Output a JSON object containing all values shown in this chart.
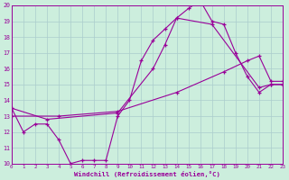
{
  "xlabel": "Windchill (Refroidissement éolien,°C)",
  "xlim": [
    0,
    23
  ],
  "ylim": [
    10,
    20
  ],
  "bg_color": "#cceedd",
  "line_color": "#990099",
  "grid_color": "#aacccc",
  "line1_x": [
    0,
    1,
    2,
    3,
    4,
    5,
    6,
    7,
    8,
    9,
    10,
    11,
    12,
    13,
    14,
    15,
    16,
    17,
    18,
    19,
    20,
    21,
    22,
    23
  ],
  "line1_y": [
    13.5,
    12.0,
    12.5,
    12.5,
    11.5,
    10.0,
    10.2,
    10.2,
    10.2,
    13.0,
    14.0,
    16.5,
    17.8,
    18.5,
    19.2,
    19.8,
    20.3,
    19.0,
    18.8,
    17.0,
    15.5,
    14.5,
    15.0,
    15.0
  ],
  "line2_x": [
    0,
    3,
    9,
    12,
    13,
    14,
    17,
    21,
    22,
    23
  ],
  "line2_y": [
    13.5,
    12.8,
    13.2,
    16.0,
    17.5,
    19.2,
    18.8,
    14.8,
    15.0,
    15.0
  ],
  "line3_x": [
    0,
    4,
    9,
    14,
    18,
    20,
    21,
    22,
    23
  ],
  "line3_y": [
    13.0,
    13.0,
    13.3,
    14.5,
    15.8,
    16.5,
    16.8,
    15.2,
    15.2
  ]
}
